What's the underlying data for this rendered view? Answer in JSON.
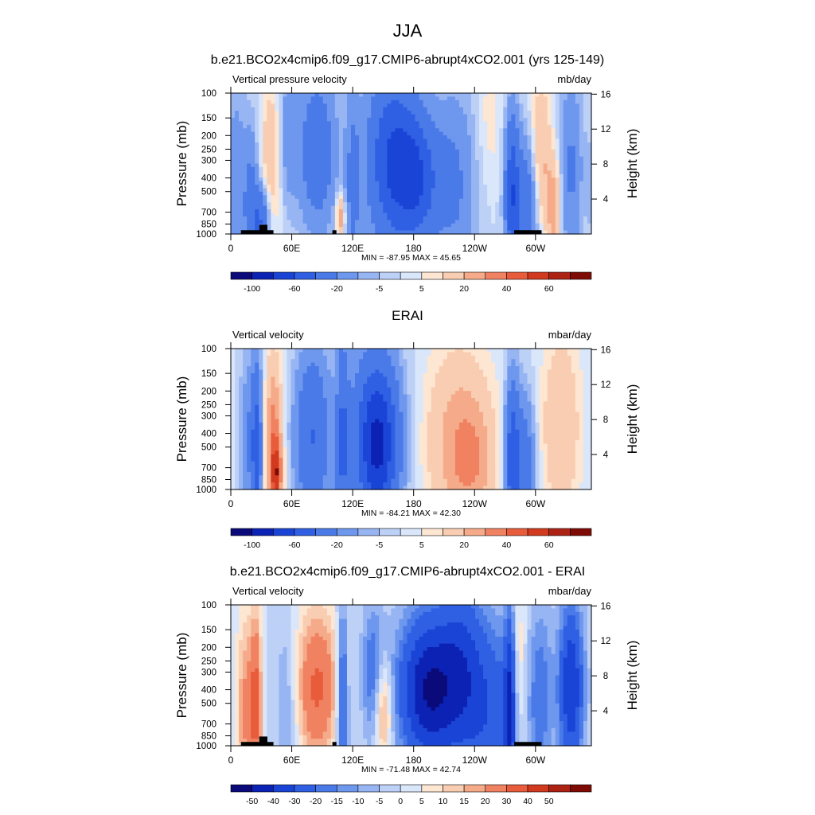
{
  "figure": {
    "title": "JJA"
  },
  "panels": [
    {
      "title": "b.e21.BCO2x4cmip6.f09_g17.CMIP6-abrupt4xCO2.001 (yrs 125-149)",
      "left_label": "Vertical pressure velocity",
      "units": "mb/day",
      "stats": "MIN = -87.95  MAX =  45.65",
      "colorbar": {
        "labels": [
          "-100",
          "-60",
          "-20",
          "-5",
          "5",
          "20",
          "40",
          "60"
        ]
      }
    },
    {
      "title": "ERAI",
      "left_label": "Vertical velocity",
      "units": "mbar/day",
      "stats": "MIN = -84.21  MAX =  42.30",
      "colorbar": {
        "labels": [
          "-100",
          "-60",
          "-20",
          "-5",
          "5",
          "20",
          "40",
          "60"
        ]
      }
    },
    {
      "title": "b.e21.BCO2x4cmip6.f09_g17.CMIP6-abrupt4xCO2.001 - ERAI",
      "left_label": "Vertical velocity",
      "units": "mbar/day",
      "stats": "MIN = -71.48  MAX =  42.74",
      "colorbar": {
        "labels": [
          "-50",
          "-40",
          "-30",
          "-20",
          "-15",
          "-10",
          "-5",
          "0",
          "5",
          "10",
          "15",
          "20",
          "30",
          "40",
          "50"
        ]
      }
    }
  ],
  "chart_data": [
    {
      "type": "heatmap",
      "title": "b.e21.BCO2x4cmip6.f09_g17.CMIP6-abrupt4xCO2.001 (yrs 125-149)",
      "ylabel": "Pressure (mb)",
      "y2label": "Height (km)",
      "x_ticks": [
        "0",
        "60E",
        "120E",
        "180",
        "120W",
        "60W"
      ],
      "x_tick_values": [
        0,
        60,
        120,
        180,
        240,
        300
      ],
      "xlim": [
        0,
        355
      ],
      "y_ticks": [
        "100",
        "150",
        "200",
        "250",
        "300",
        "400",
        "500",
        "700",
        "850",
        "1000"
      ],
      "y_tick_values": [
        100,
        150,
        200,
        250,
        300,
        400,
        500,
        700,
        850,
        1000
      ],
      "ylim": [
        1000,
        100
      ],
      "y_scale": "log",
      "y2_ticks": [
        "4",
        "8",
        "12",
        "16"
      ],
      "y2_tick_values": [
        4,
        8,
        12,
        16
      ],
      "levels": [
        -120,
        -100,
        -80,
        -60,
        -40,
        -20,
        -10,
        -5,
        0,
        5,
        10,
        20,
        30,
        40,
        50,
        60,
        70
      ],
      "colors": [
        "#0a0a7a",
        "#0c22b4",
        "#1a44d6",
        "#2f60e4",
        "#4a7ae8",
        "#6e97ee",
        "#97b5f2",
        "#bdd1f7",
        "#dae7fb",
        "#fde6d2",
        "#f9cdb1",
        "#f5ab8a",
        "#f08261",
        "#e85c3b",
        "#d23a1f",
        "#ac2314",
        "#7f0b05"
      ],
      "colorbar_labels": [
        "-100",
        "-60",
        "-20",
        "-5",
        "5",
        "20",
        "40",
        "60"
      ],
      "features": [
        {
          "lon": 5,
          "p": 500,
          "amp": -18,
          "w": 7,
          "h": 1.2
        },
        {
          "lon": 20,
          "p": 620,
          "amp": -25,
          "w": 5,
          "h": 0.9
        },
        {
          "lon": 30,
          "p": 800,
          "amp": -40,
          "w": 6,
          "h": 0.4
        },
        {
          "lon": 40,
          "p": 290,
          "amp": 20,
          "w": 7,
          "h": 0.9
        },
        {
          "lon": 55,
          "p": 200,
          "amp": -14,
          "w": 7,
          "h": 0.9
        },
        {
          "lon": 85,
          "p": 260,
          "amp": -35,
          "w": 13,
          "h": 0.9
        },
        {
          "lon": 108,
          "p": 750,
          "amp": 30,
          "w": 3,
          "h": 0.25
        },
        {
          "lon": 120,
          "p": 500,
          "amp": -22,
          "w": 5,
          "h": 1.2
        },
        {
          "lon": 160,
          "p": 300,
          "amp": -62,
          "w": 18,
          "h": 1.0
        },
        {
          "lon": 185,
          "p": 420,
          "amp": -45,
          "w": 14,
          "h": 0.7
        },
        {
          "lon": 220,
          "p": 450,
          "amp": -22,
          "w": 15,
          "h": 1.1
        },
        {
          "lon": 255,
          "p": 150,
          "amp": 8,
          "w": 8,
          "h": 0.8
        },
        {
          "lon": 277,
          "p": 520,
          "amp": -55,
          "w": 5,
          "h": 0.9
        },
        {
          "lon": 292,
          "p": 650,
          "amp": -35,
          "w": 8,
          "h": 0.8
        },
        {
          "lon": 305,
          "p": 290,
          "amp": 24,
          "w": 7,
          "h": 0.9
        },
        {
          "lon": 318,
          "p": 650,
          "amp": 25,
          "w": 5,
          "h": 0.6
        },
        {
          "lon": 335,
          "p": 350,
          "amp": -22,
          "w": 8,
          "h": 1.1
        }
      ]
    },
    {
      "type": "heatmap",
      "title": "ERAI",
      "ylabel": "Pressure (mb)",
      "y2label": "Height (km)",
      "x_ticks": [
        "0",
        "60E",
        "120E",
        "180",
        "120W",
        "60W"
      ],
      "x_tick_values": [
        0,
        60,
        120,
        180,
        240,
        300
      ],
      "xlim": [
        0,
        355
      ],
      "y_ticks": [
        "100",
        "150",
        "200",
        "250",
        "300",
        "400",
        "500",
        "700",
        "850",
        "1000"
      ],
      "y_tick_values": [
        100,
        150,
        200,
        250,
        300,
        400,
        500,
        700,
        850,
        1000
      ],
      "ylim": [
        1000,
        100
      ],
      "y_scale": "log",
      "y2_ticks": [
        "4",
        "8",
        "12",
        "16"
      ],
      "y2_tick_values": [
        4,
        8,
        12,
        16
      ],
      "levels": [
        -120,
        -100,
        -80,
        -60,
        -40,
        -20,
        -10,
        -5,
        0,
        5,
        10,
        20,
        30,
        40,
        50,
        60,
        70
      ],
      "colors": [
        "#0a0a7a",
        "#0c22b4",
        "#1a44d6",
        "#2f60e4",
        "#4a7ae8",
        "#6e97ee",
        "#97b5f2",
        "#bdd1f7",
        "#dae7fb",
        "#fde6d2",
        "#f9cdb1",
        "#f5ab8a",
        "#f08261",
        "#e85c3b",
        "#d23a1f",
        "#ac2314",
        "#7f0b05"
      ],
      "colorbar_labels": [
        "-100",
        "-60",
        "-20",
        "-5",
        "5",
        "20",
        "40",
        "60"
      ],
      "features": [
        {
          "lon": 25,
          "p": 500,
          "amp": -50,
          "w": 4,
          "h": 1.0
        },
        {
          "lon": 15,
          "p": 450,
          "amp": -15,
          "w": 5,
          "h": 1.0
        },
        {
          "lon": 42,
          "p": 450,
          "amp": 35,
          "w": 6,
          "h": 1.0
        },
        {
          "lon": 45,
          "p": 780,
          "amp": 35,
          "w": 4,
          "h": 0.4
        },
        {
          "lon": 80,
          "p": 420,
          "amp": -40,
          "w": 12,
          "h": 1.0
        },
        {
          "lon": 110,
          "p": 500,
          "amp": -35,
          "w": 4,
          "h": 1.3
        },
        {
          "lon": 145,
          "p": 500,
          "amp": -60,
          "w": 13,
          "h": 0.9
        },
        {
          "lon": 140,
          "p": 400,
          "amp": -30,
          "w": 20,
          "h": 1.0
        },
        {
          "lon": 225,
          "p": 450,
          "amp": 25,
          "w": 24,
          "h": 1.1
        },
        {
          "lon": 238,
          "p": 650,
          "amp": 15,
          "w": 14,
          "h": 0.6
        },
        {
          "lon": 277,
          "p": 600,
          "amp": -55,
          "w": 5,
          "h": 0.9
        },
        {
          "lon": 290,
          "p": 650,
          "amp": -30,
          "w": 7,
          "h": 0.8
        },
        {
          "lon": 325,
          "p": 350,
          "amp": 20,
          "w": 14,
          "h": 1.1
        }
      ]
    },
    {
      "type": "heatmap",
      "title": "b.e21.BCO2x4cmip6.f09_g17.CMIP6-abrupt4xCO2.001 - ERAI",
      "ylabel": "Pressure (mb)",
      "y2label": "Height (km)",
      "x_ticks": [
        "0",
        "60E",
        "120E",
        "180",
        "120W",
        "60W"
      ],
      "x_tick_values": [
        0,
        60,
        120,
        180,
        240,
        300
      ],
      "xlim": [
        0,
        355
      ],
      "y_ticks": [
        "100",
        "150",
        "200",
        "250",
        "300",
        "400",
        "500",
        "700",
        "850",
        "1000"
      ],
      "y_tick_values": [
        100,
        150,
        200,
        250,
        300,
        400,
        500,
        700,
        850,
        1000
      ],
      "ylim": [
        1000,
        100
      ],
      "y_scale": "log",
      "y2_ticks": [
        "4",
        "8",
        "12",
        "16"
      ],
      "y2_tick_values": [
        4,
        8,
        12,
        16
      ],
      "levels": [
        -60,
        -50,
        -40,
        -30,
        -20,
        -15,
        -10,
        -5,
        0,
        5,
        10,
        15,
        20,
        30,
        40,
        50,
        60
      ],
      "colors": [
        "#0a0a7a",
        "#0c22b4",
        "#1a44d6",
        "#2f60e4",
        "#4a7ae8",
        "#6e97ee",
        "#97b5f2",
        "#bdd1f7",
        "#dae7fb",
        "#fde6d2",
        "#f9cdb1",
        "#f5ab8a",
        "#f08261",
        "#e85c3b",
        "#d23a1f",
        "#ac2314",
        "#7f0b05"
      ],
      "colorbar_labels": [
        "-50",
        "-40",
        "-30",
        "-20",
        "-15",
        "-10",
        "-5",
        "0",
        "5",
        "10",
        "15",
        "20",
        "30",
        "40",
        "50"
      ],
      "features": [
        {
          "lon": 15,
          "p": 550,
          "amp": 22,
          "w": 7,
          "h": 1.1
        },
        {
          "lon": 25,
          "p": 500,
          "amp": 28,
          "w": 4,
          "h": 1.1
        },
        {
          "lon": 55,
          "p": 600,
          "amp": -12,
          "w": 8,
          "h": 1.2
        },
        {
          "lon": 85,
          "p": 380,
          "amp": 32,
          "w": 15,
          "h": 0.9
        },
        {
          "lon": 110,
          "p": 500,
          "amp": -30,
          "w": 4,
          "h": 1.2
        },
        {
          "lon": 140,
          "p": 300,
          "amp": -20,
          "w": 8,
          "h": 0.8
        },
        {
          "lon": 150,
          "p": 560,
          "amp": 26,
          "w": 6,
          "h": 0.6
        },
        {
          "lon": 195,
          "p": 400,
          "amp": -50,
          "w": 22,
          "h": 0.9
        },
        {
          "lon": 250,
          "p": 550,
          "amp": -28,
          "w": 24,
          "h": 1.1
        },
        {
          "lon": 227,
          "p": 180,
          "amp": -15,
          "w": 14,
          "h": 0.9
        },
        {
          "lon": 275,
          "p": 550,
          "amp": -32,
          "w": 4,
          "h": 1.2
        },
        {
          "lon": 284,
          "p": 300,
          "amp": 15,
          "w": 5,
          "h": 1.0
        },
        {
          "lon": 305,
          "p": 450,
          "amp": -18,
          "w": 8,
          "h": 1.1
        },
        {
          "lon": 335,
          "p": 380,
          "amp": -40,
          "w": 9,
          "h": 1.0
        }
      ]
    }
  ]
}
